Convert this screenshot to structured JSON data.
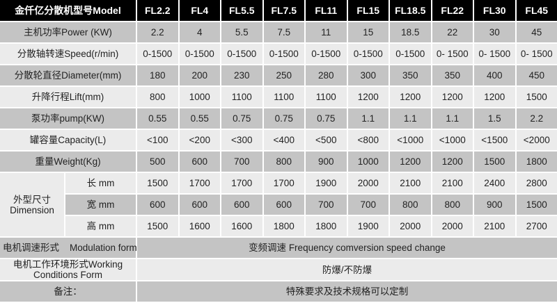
{
  "header": {
    "label": "金仟亿分散机型号Model",
    "models": [
      "FL2.2",
      "FL4",
      "FL5.5",
      "FL7.5",
      "FL11",
      "FL15",
      "FL18.5",
      "FL22",
      "FL30",
      "FL45"
    ]
  },
  "rows": [
    {
      "label": "主机功率Power (KW)",
      "values": [
        "2.2",
        "4",
        "5.5",
        "7.5",
        "11",
        "15",
        "18.5",
        "22",
        "30",
        "45"
      ]
    },
    {
      "label": "分散轴转速Speed(r/min)",
      "values": [
        "0-1500",
        "0-1500",
        "0-1500",
        "0-1500",
        "0-1500",
        "0-1500",
        "0-1500",
        "0- 1500",
        "0- 1500",
        "0- 1500"
      ]
    },
    {
      "label": "分散轮直径Diameter(mm)",
      "values": [
        "180",
        "200",
        "230",
        "250",
        "280",
        "300",
        "350",
        "350",
        "400",
        "450"
      ]
    },
    {
      "label": "升降行程Lift(mm)",
      "values": [
        "800",
        "1000",
        "1100",
        "1100",
        "1100",
        "1200",
        "1200",
        "1200",
        "1200",
        "1500"
      ]
    },
    {
      "label": "泵功率pump(KW)",
      "values": [
        "0.55",
        "0.55",
        "0.75",
        "0.75",
        "0.75",
        "1.1",
        "1.1",
        "1.1",
        "1.5",
        "2.2"
      ]
    },
    {
      "label": "罐容量Capacity(L)",
      "values": [
        "<100",
        "<200",
        "<300",
        "<400",
        "<500",
        "<800",
        "<1000",
        "<1000",
        "<1500",
        "<2000"
      ]
    },
    {
      "label": "重量Weight(Kg)",
      "values": [
        "500",
        "600",
        "700",
        "800",
        "900",
        "1000",
        "1200",
        "1200",
        "1500",
        "1800"
      ]
    }
  ],
  "dimension": {
    "label_cn": "外型尺寸",
    "label_en": "Dimension",
    "rows": [
      {
        "label": "长 mm",
        "values": [
          "1500",
          "1700",
          "1700",
          "1700",
          "1900",
          "2000",
          "2100",
          "2100",
          "2400",
          "2800"
        ]
      },
      {
        "label": "宽 mm",
        "values": [
          "600",
          "600",
          "600",
          "600",
          "700",
          "700",
          "800",
          "800",
          "900",
          "1500"
        ]
      },
      {
        "label": "高 mm",
        "values": [
          "1500",
          "1600",
          "1600",
          "1800",
          "1800",
          "1900",
          "2000",
          "2000",
          "2100",
          "2700"
        ]
      }
    ]
  },
  "footer_rows": [
    {
      "label": "电机调速形式    Modulation form",
      "value": "变频调速 Frequency comversion speed change"
    },
    {
      "label": "电机工作环境形式Working Conditions Form",
      "value": "防爆/不防爆"
    },
    {
      "label": "备注：",
      "value": "特殊要求及技术规格可以定制"
    }
  ]
}
